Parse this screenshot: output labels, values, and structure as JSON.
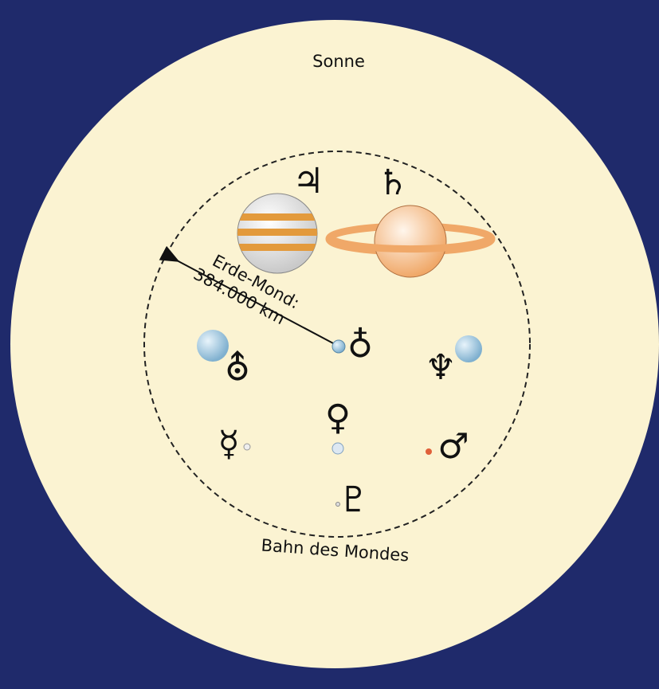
{
  "title": "Sonne",
  "distance": {
    "label": "Erde-Mond:",
    "value": "384.000 km"
  },
  "orbit_label": "Bahn des Mondes",
  "symbols": {
    "jupiter": "♃",
    "saturn": "♄",
    "earth": "♁",
    "uranus": "⛢",
    "neptune": "♆",
    "venus": "♀",
    "mercury": "☿",
    "mars": "♂",
    "pluto": "♇"
  }
}
